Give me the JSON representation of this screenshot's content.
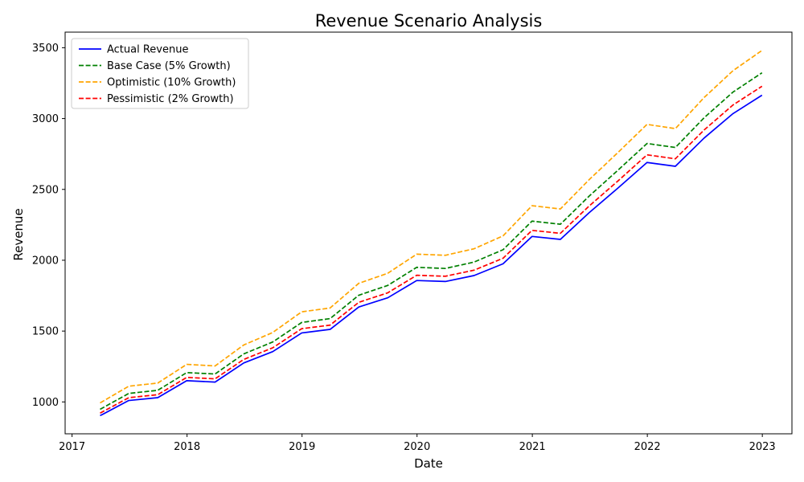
{
  "chart_data": {
    "type": "line",
    "title": "Revenue Scenario Analysis",
    "xlabel": "Date",
    "ylabel": "Revenue",
    "x_ticks": [
      "2017",
      "2018",
      "2019",
      "2020",
      "2021",
      "2022",
      "2023"
    ],
    "y_ticks": [
      1000,
      1500,
      2000,
      2500,
      3000,
      3500
    ],
    "xlim": [
      "2016-12-10",
      "2023-04-05"
    ],
    "ylim": [
      775,
      3610
    ],
    "grid": false,
    "legend_position": "top-left",
    "x": [
      "2017-03-31",
      "2017-06-30",
      "2017-09-30",
      "2017-12-31",
      "2018-03-31",
      "2018-06-30",
      "2018-09-30",
      "2018-12-31",
      "2019-03-31",
      "2019-06-30",
      "2019-09-30",
      "2019-12-31",
      "2020-03-31",
      "2020-06-30",
      "2020-09-30",
      "2020-12-31",
      "2021-03-31",
      "2021-06-30",
      "2021-09-30",
      "2021-12-31",
      "2022-03-31",
      "2022-06-30",
      "2022-09-30",
      "2022-12-31"
    ],
    "series": [
      {
        "name": "Actual Revenue",
        "color": "#0000ff",
        "style": "solid",
        "values": [
          903,
          1010,
          1030,
          1150,
          1140,
          1275,
          1355,
          1487,
          1512,
          1670,
          1735,
          1857,
          1850,
          1892,
          1975,
          2168,
          2147,
          2335,
          2510,
          2690,
          2663,
          2862,
          3035,
          3165
        ]
      },
      {
        "name": "Base Case (5% Growth)",
        "color": "#008000",
        "style": "dashed",
        "values": [
          948,
          1060,
          1082,
          1207,
          1197,
          1339,
          1423,
          1561,
          1588,
          1753,
          1822,
          1950,
          1942,
          1987,
          2074,
          2276,
          2254,
          2452,
          2636,
          2824,
          2796,
          3005,
          3187,
          3323
        ]
      },
      {
        "name": "Optimistic (10% Growth)",
        "color": "#ffa500",
        "style": "dashed",
        "values": [
          993,
          1111,
          1133,
          1265,
          1254,
          1402,
          1490,
          1636,
          1663,
          1837,
          1908,
          2043,
          2035,
          2081,
          2172,
          2385,
          2362,
          2568,
          2761,
          2959,
          2929,
          3148,
          3338,
          3481
        ]
      },
      {
        "name": "Pessimistic (2% Growth)",
        "color": "#ff0000",
        "style": "dashed",
        "values": [
          921,
          1030,
          1051,
          1173,
          1163,
          1300,
          1382,
          1517,
          1542,
          1703,
          1770,
          1894,
          1887,
          1930,
          2014,
          2211,
          2190,
          2382,
          2560,
          2744,
          2716,
          2919,
          3096,
          3228
        ]
      }
    ]
  }
}
